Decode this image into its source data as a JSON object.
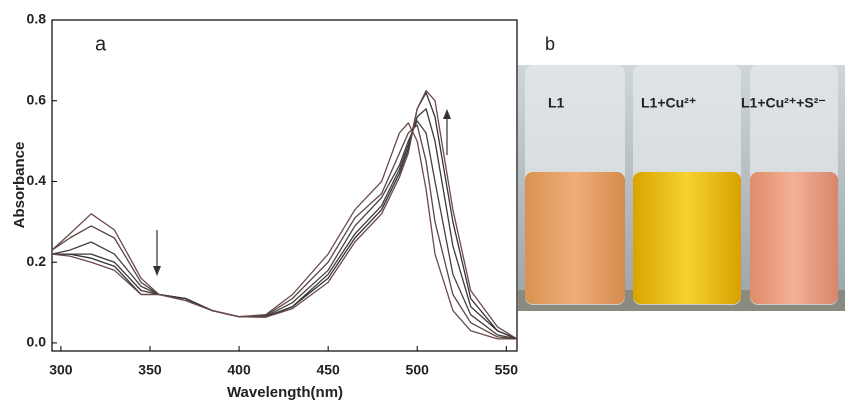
{
  "chart_data": {
    "type": "line",
    "panel_label": "a",
    "x_label": "Wavelength(nm)",
    "y_label": "Absorbance",
    "x": [
      295,
      305,
      317,
      330,
      345,
      355,
      370,
      385,
      400,
      415,
      430,
      450,
      465,
      480,
      490,
      495,
      500,
      505,
      510,
      520,
      530,
      545,
      556
    ],
    "series": [
      {
        "color": "#6b4a4a",
        "values": [
          0.23,
          0.27,
          0.32,
          0.28,
          0.16,
          0.12,
          0.11,
          0.08,
          0.065,
          0.07,
          0.12,
          0.22,
          0.33,
          0.4,
          0.52,
          0.545,
          0.5,
          0.38,
          0.22,
          0.08,
          0.03,
          0.01,
          0.01
        ]
      },
      {
        "color": "#5a4545",
        "values": [
          0.23,
          0.26,
          0.29,
          0.26,
          0.15,
          0.12,
          0.11,
          0.08,
          0.065,
          0.068,
          0.11,
          0.2,
          0.31,
          0.37,
          0.47,
          0.52,
          0.54,
          0.45,
          0.3,
          0.12,
          0.05,
          0.015,
          0.01
        ]
      },
      {
        "color": "#4a4040",
        "values": [
          0.22,
          0.23,
          0.25,
          0.22,
          0.14,
          0.12,
          0.11,
          0.08,
          0.065,
          0.066,
          0.1,
          0.18,
          0.29,
          0.36,
          0.44,
          0.5,
          0.55,
          0.52,
          0.4,
          0.17,
          0.07,
          0.02,
          0.01
        ]
      },
      {
        "color": "#3a3a3a",
        "values": [
          0.22,
          0.22,
          0.22,
          0.2,
          0.13,
          0.12,
          0.11,
          0.08,
          0.065,
          0.065,
          0.09,
          0.17,
          0.27,
          0.34,
          0.43,
          0.49,
          0.56,
          0.58,
          0.5,
          0.24,
          0.09,
          0.03,
          0.01
        ]
      },
      {
        "color": "#333333",
        "values": [
          0.22,
          0.22,
          0.21,
          0.19,
          0.12,
          0.12,
          0.105,
          0.08,
          0.065,
          0.064,
          0.09,
          0.16,
          0.26,
          0.33,
          0.42,
          0.48,
          0.58,
          0.62,
          0.56,
          0.3,
          0.11,
          0.03,
          0.01
        ]
      },
      {
        "color": "#6b4a4a",
        "values": [
          0.22,
          0.215,
          0.2,
          0.18,
          0.12,
          0.12,
          0.105,
          0.08,
          0.065,
          0.064,
          0.085,
          0.15,
          0.25,
          0.32,
          0.41,
          0.47,
          0.58,
          0.625,
          0.6,
          0.33,
          0.13,
          0.04,
          0.01
        ]
      }
    ],
    "xlim": [
      295,
      556
    ],
    "ylim": [
      -0.02,
      0.8
    ],
    "xticks": [
      300,
      350,
      400,
      450,
      500,
      550
    ],
    "yticks": [
      {
        "value": 0,
        "label": "0.0"
      },
      0.2,
      0.4,
      0.6,
      0.8
    ],
    "photo": {
      "panel_label": "b",
      "labels": [
        "L1",
        "L1+Cu²⁺",
        "L1+Cu²⁺+S²⁻"
      ]
    }
  }
}
